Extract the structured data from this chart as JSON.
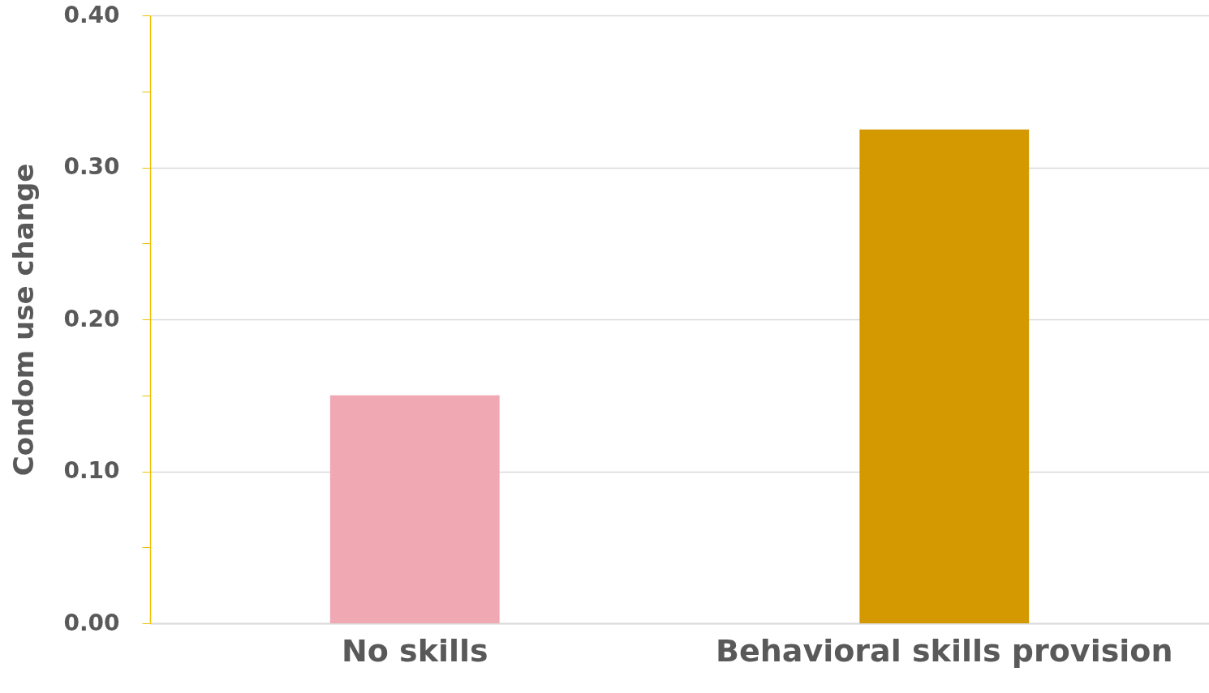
{
  "chart_data": {
    "type": "bar",
    "ylabel": "Condom use change",
    "categories": [
      "No skills",
      "Behavioral skills provision"
    ],
    "values": [
      0.15,
      0.325
    ],
    "colors": [
      "#f0a8b2",
      "#d49800"
    ],
    "ylim": [
      0,
      0.4
    ],
    "yticks": [
      {
        "value": 0,
        "label": "0.00"
      },
      {
        "value": 0.05,
        "label": null
      },
      {
        "value": 0.1,
        "label": "0.10"
      },
      {
        "value": 0.15,
        "label": null
      },
      {
        "value": 0.2,
        "label": "0.20"
      },
      {
        "value": 0.25,
        "label": null
      },
      {
        "value": 0.3,
        "label": "0.30"
      },
      {
        "value": 0.35,
        "label": null
      },
      {
        "value": 0.4,
        "label": "0.40"
      }
    ],
    "grid": "y"
  }
}
